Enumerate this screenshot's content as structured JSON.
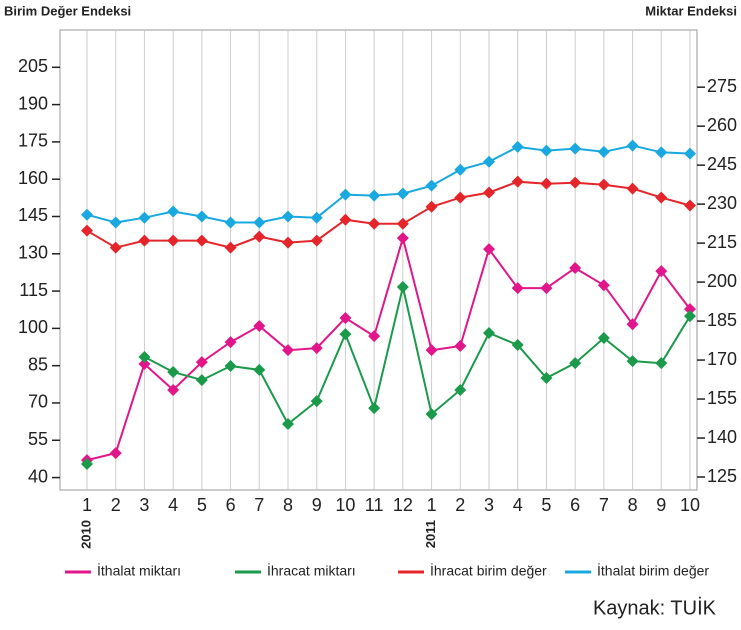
{
  "chart_data": {
    "type": "line",
    "y_axis_label": "Birim Değer Endeksi",
    "y2_axis_label": "Miktar Endeksi",
    "source": "Kaynak: TUİK",
    "categories": [
      "1",
      "2",
      "3",
      "4",
      "5",
      "6",
      "7",
      "8",
      "9",
      "10",
      "11",
      "12",
      "1",
      "2",
      "3",
      "4",
      "5",
      "6",
      "7",
      "8",
      "9",
      "10"
    ],
    "years": [
      {
        "index": 0,
        "label": "2010"
      },
      {
        "index": 12,
        "label": "2011"
      }
    ],
    "ylim": [
      35,
      220
    ],
    "yticks": [
      40,
      55,
      70,
      85,
      100,
      115,
      130,
      145,
      160,
      175,
      190,
      205
    ],
    "y2lim": [
      120,
      297
    ],
    "y2ticks": [
      125,
      140,
      155,
      170,
      185,
      200,
      215,
      230,
      245,
      260,
      275
    ],
    "grid": true,
    "legend": "bottom",
    "series": [
      {
        "name": "İthalat miktarı",
        "color": "#e0168a",
        "axis": "y2",
        "values": [
          131.5,
          134.2,
          168.5,
          158.5,
          169.2,
          176.9,
          183.1,
          173.8,
          174.6,
          186.2,
          179.2,
          216.9,
          173.8,
          175.4,
          212.7,
          197.7,
          197.7,
          205.4,
          198.8,
          183.8,
          204.2,
          189.6
        ]
      },
      {
        "name": "İhracat miktarı",
        "color": "#1a9a4a",
        "axis": "y2",
        "values": [
          130,
          null,
          171.2,
          165.4,
          162.3,
          167.7,
          166.2,
          145.4,
          154.2,
          180,
          151.5,
          198.1,
          149.2,
          158.5,
          180.4,
          175.8,
          163.1,
          168.8,
          178.5,
          169.6,
          168.8,
          186.9
        ]
      },
      {
        "name": "İhracat birim değer",
        "color": "#e4262b",
        "axis": "y",
        "values": [
          139.3,
          132.5,
          135.3,
          135.3,
          135.3,
          132.5,
          136.9,
          134.5,
          135.3,
          143.7,
          142.1,
          142.1,
          148.9,
          152.6,
          154.6,
          159,
          158.2,
          158.6,
          157.8,
          156.2,
          152.6,
          149.4
        ]
      },
      {
        "name": "İthalat birim değer",
        "color": "#19a8e0",
        "axis": "y",
        "values": [
          145.7,
          142.6,
          144.5,
          147,
          145,
          142.6,
          142.6,
          145,
          144.5,
          153.8,
          153.4,
          154.2,
          157.4,
          163.8,
          167,
          173,
          171.5,
          172.3,
          171,
          173.5,
          170.8,
          170.3
        ]
      }
    ]
  }
}
